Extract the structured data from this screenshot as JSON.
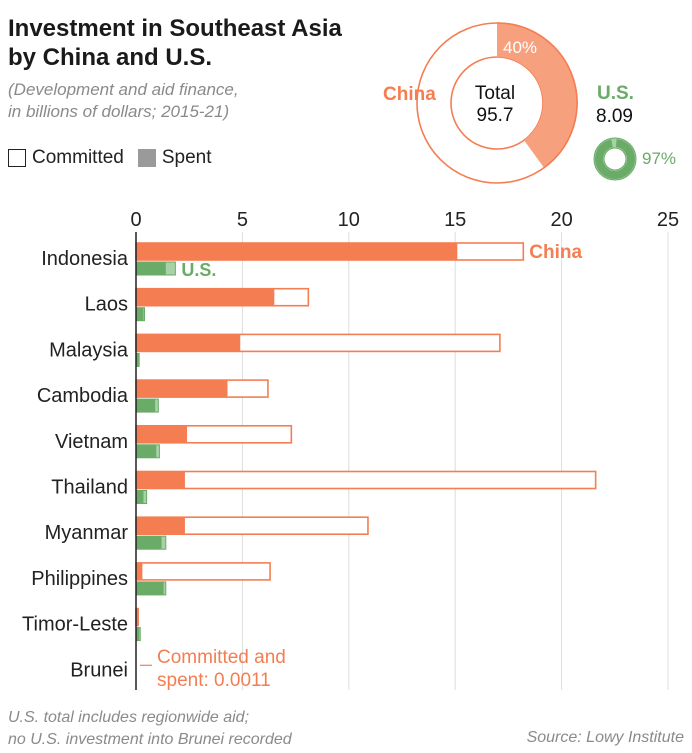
{
  "title_line1": "Investment in Southeast Asia",
  "title_line2": "by China and U.S.",
  "subtitle_line1": "(Development and aid finance,",
  "subtitle_line2": "in billions of dollars; 2015-21)",
  "legend": {
    "committed": "Committed",
    "spent": "Spent"
  },
  "donut": {
    "total_label": "Total",
    "total_value": "95.7",
    "china_label": "China",
    "china_pct": "40%",
    "us_label": "U.S.",
    "us_value": "8.09",
    "us_pct": "97%"
  },
  "inline_labels": {
    "china": "China",
    "us": "U.S."
  },
  "brunei_note_line1": "Committed and",
  "brunei_note_line2": "spent: 0.0011",
  "footnote_line1": "U.S. total includes regionwide aid;",
  "footnote_line2": "no U.S. investment into Brunei recorded",
  "source": "Source: Lowy Institute",
  "colors": {
    "china": "#f47e52",
    "us": "#6aab68",
    "us_light": "#a8d1a6",
    "china_light": "#f7a07e",
    "axis": "#222222",
    "grid": "#dddddd",
    "muted": "#8a8a8a"
  },
  "chart_data": {
    "type": "bar",
    "orientation": "horizontal",
    "xlim": [
      0,
      25
    ],
    "xticks": [
      0,
      5,
      10,
      15,
      20,
      25
    ],
    "grid": true,
    "categories": [
      "Indonesia",
      "Laos",
      "Malaysia",
      "Cambodia",
      "Vietnam",
      "Thailand",
      "Myanmar",
      "Philippines",
      "Timor-Leste",
      "Brunei"
    ],
    "series": [
      {
        "name": "China",
        "committed": [
          18.2,
          8.1,
          17.1,
          6.2,
          7.3,
          21.6,
          10.9,
          6.3,
          0.1,
          0.0011
        ],
        "spent": [
          15.1,
          6.5,
          4.9,
          4.3,
          2.4,
          2.3,
          2.3,
          0.3,
          0.1,
          0.0011
        ]
      },
      {
        "name": "U.S.",
        "committed": [
          1.85,
          0.4,
          0.15,
          1.05,
          1.1,
          0.5,
          1.4,
          1.4,
          0.2,
          0
        ],
        "spent": [
          1.4,
          0.35,
          0.12,
          0.9,
          0.95,
          0.35,
          1.2,
          1.3,
          0.15,
          0
        ]
      }
    ],
    "donut_data": {
      "total": 95.7,
      "china_share_pct": 40,
      "us_total": 8.09,
      "us_spent_pct": 97
    }
  }
}
